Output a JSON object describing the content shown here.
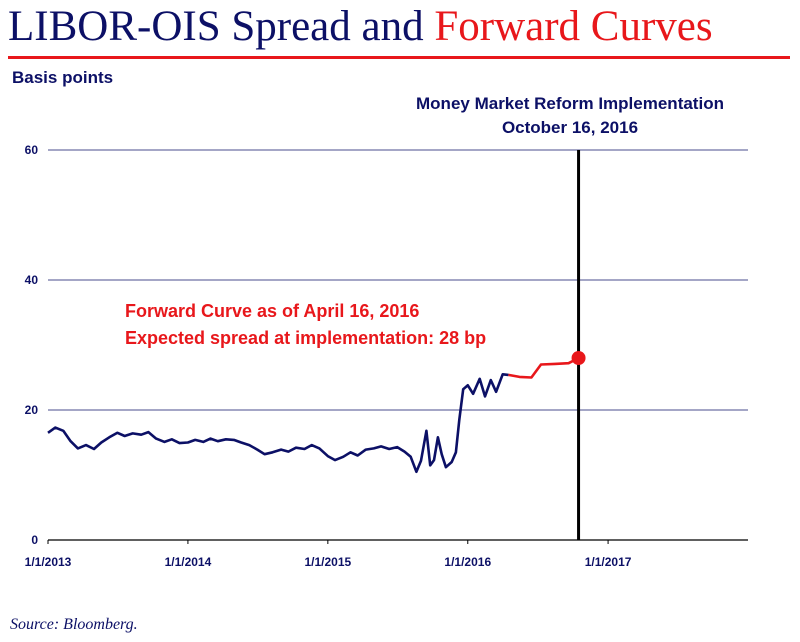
{
  "header": {
    "title_part1": "LIBOR-OIS Spread and ",
    "title_part2": "Forward Curves"
  },
  "footer": {
    "source": "Source: Bloomberg."
  },
  "chart_data": {
    "type": "line",
    "ylabel": "Basis points",
    "xlabel": "",
    "ylim": [
      0,
      60
    ],
    "yticks": [
      0,
      20,
      40,
      60
    ],
    "xticks": [
      "1/1/2013",
      "1/1/2014",
      "1/1/2015",
      "1/1/2016",
      "1/1/2017"
    ],
    "xlim": [
      "2013-01-01",
      "2018-01-01"
    ],
    "grid": "horizontal",
    "colors": {
      "historical": "#0c1066",
      "forward": "#e8171b",
      "event_line": "#000000",
      "title_main": "#0c1066",
      "title_accent": "#e8171b"
    },
    "event": {
      "label_line1": "Money Market Reform Implementation",
      "label_line2": "October 16, 2016",
      "date": "2016-10-16"
    },
    "annotation": {
      "line1": "Forward Curve as of April 16, 2016",
      "line2": "Expected spread at implementation: 28 bp",
      "point": {
        "x": "2016-10-16",
        "y": 28
      }
    },
    "series": [
      {
        "values": [
          [
            "2013-01-01",
            16.5
          ],
          [
            "2013-01-20",
            17.3
          ],
          [
            "2013-02-10",
            16.8
          ],
          [
            "2013-03-01",
            15.2
          ],
          [
            "2013-03-20",
            14.1
          ],
          [
            "2013-04-10",
            14.6
          ],
          [
            "2013-05-01",
            14.0
          ],
          [
            "2013-05-20",
            15.0
          ],
          [
            "2013-06-10",
            15.8
          ],
          [
            "2013-07-01",
            16.5
          ],
          [
            "2013-07-20",
            16.0
          ],
          [
            "2013-08-10",
            16.4
          ],
          [
            "2013-09-01",
            16.2
          ],
          [
            "2013-09-20",
            16.6
          ],
          [
            "2013-10-10",
            15.6
          ],
          [
            "2013-11-01",
            15.1
          ],
          [
            "2013-11-20",
            15.5
          ],
          [
            "2013-12-10",
            14.9
          ],
          [
            "2014-01-01",
            15.0
          ],
          [
            "2014-01-20",
            15.4
          ],
          [
            "2014-02-10",
            15.1
          ],
          [
            "2014-03-01",
            15.6
          ],
          [
            "2014-03-20",
            15.2
          ],
          [
            "2014-04-10",
            15.5
          ],
          [
            "2014-05-01",
            15.4
          ],
          [
            "2014-05-20",
            15.0
          ],
          [
            "2014-06-10",
            14.6
          ],
          [
            "2014-07-01",
            13.9
          ],
          [
            "2014-07-20",
            13.2
          ],
          [
            "2014-08-10",
            13.5
          ],
          [
            "2014-09-01",
            13.9
          ],
          [
            "2014-09-20",
            13.6
          ],
          [
            "2014-10-10",
            14.2
          ],
          [
            "2014-11-01",
            14.0
          ],
          [
            "2014-11-20",
            14.6
          ],
          [
            "2014-12-10",
            14.1
          ],
          [
            "2015-01-01",
            12.9
          ],
          [
            "2015-01-20",
            12.3
          ],
          [
            "2015-02-10",
            12.8
          ],
          [
            "2015-03-01",
            13.5
          ],
          [
            "2015-03-20",
            13.0
          ],
          [
            "2015-04-10",
            13.9
          ],
          [
            "2015-05-01",
            14.1
          ],
          [
            "2015-05-20",
            14.4
          ],
          [
            "2015-06-10",
            14.0
          ],
          [
            "2015-07-01",
            14.3
          ],
          [
            "2015-07-20",
            13.6
          ],
          [
            "2015-08-05",
            12.8
          ],
          [
            "2015-08-20",
            10.5
          ],
          [
            "2015-09-01",
            12.2
          ],
          [
            "2015-09-15",
            16.8
          ],
          [
            "2015-09-25",
            11.5
          ],
          [
            "2015-10-05",
            12.3
          ],
          [
            "2015-10-15",
            15.8
          ],
          [
            "2015-10-25",
            13.2
          ],
          [
            "2015-11-05",
            11.2
          ],
          [
            "2015-11-20",
            12.0
          ],
          [
            "2015-12-01",
            13.5
          ],
          [
            "2015-12-10",
            18.5
          ],
          [
            "2015-12-20",
            23.2
          ],
          [
            "2016-01-01",
            23.8
          ],
          [
            "2016-01-15",
            22.5
          ],
          [
            "2016-02-01",
            24.8
          ],
          [
            "2016-02-15",
            22.1
          ],
          [
            "2016-03-01",
            24.6
          ],
          [
            "2016-03-15",
            22.8
          ],
          [
            "2016-04-01",
            25.5
          ],
          [
            "2016-04-16",
            25.4
          ]
        ]
      },
      {
        "values": [
          [
            "2016-04-16",
            25.4
          ],
          [
            "2016-05-15",
            25.1
          ],
          [
            "2016-06-15",
            25.0
          ],
          [
            "2016-07-10",
            27.0
          ],
          [
            "2016-08-15",
            27.1
          ],
          [
            "2016-09-20",
            27.2
          ],
          [
            "2016-10-16",
            28.0
          ]
        ]
      }
    ]
  }
}
